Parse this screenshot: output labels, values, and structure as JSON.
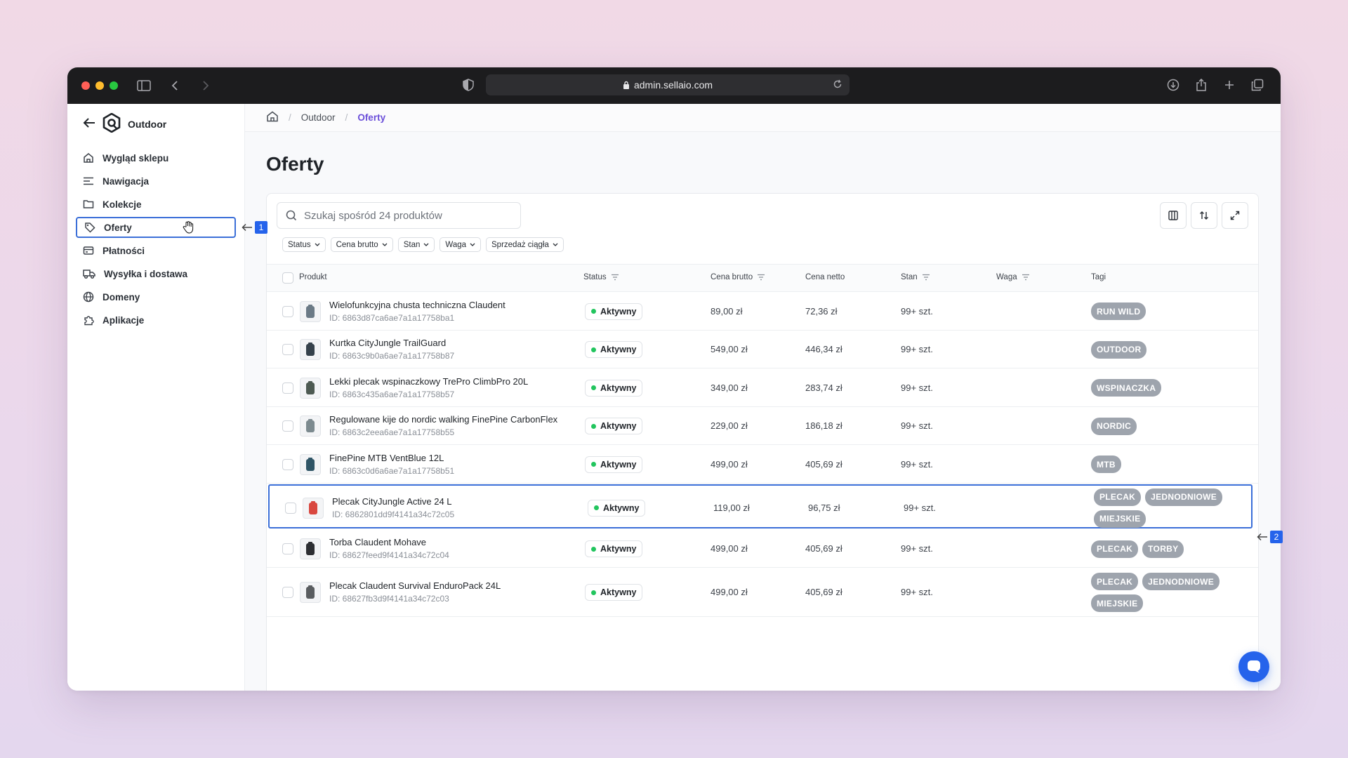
{
  "browser": {
    "url": "admin.sellaio.com"
  },
  "sidebar": {
    "store_name": "Outdoor",
    "items": [
      {
        "label": "Wygląd sklepu",
        "icon": "home-icon"
      },
      {
        "label": "Nawigacja",
        "icon": "menu-icon"
      },
      {
        "label": "Kolekcje",
        "icon": "folder-icon"
      },
      {
        "label": "Oferty",
        "icon": "tag-icon",
        "active": true
      },
      {
        "label": "Płatności",
        "icon": "credit-card-icon"
      },
      {
        "label": "Wysyłka i dostawa",
        "icon": "truck-icon"
      },
      {
        "label": "Domeny",
        "icon": "globe-icon"
      },
      {
        "label": "Aplikacje",
        "icon": "puzzle-icon"
      }
    ]
  },
  "breadcrumb": {
    "items": [
      "Outdoor",
      "Oferty"
    ]
  },
  "page": {
    "title": "Oferty"
  },
  "search": {
    "placeholder": "Szukaj spośród 24 produktów"
  },
  "filters": [
    "Status",
    "Cena brutto",
    "Stan",
    "Waga",
    "Sprzedaż ciągła"
  ],
  "table": {
    "columns": [
      "Produkt",
      "Status",
      "Cena brutto",
      "Cena netto",
      "Stan",
      "Waga",
      "Tagi"
    ],
    "rows": [
      {
        "name": "Wielofunkcyjna chusta techniczna Claudent",
        "id": "ID: 6863d87ca6ae7a1a17758ba1",
        "status": "Aktywny",
        "gross": "89,00 zł",
        "net": "72,36 zł",
        "stock": "99+ szt.",
        "weight": "",
        "tags": [
          "RUN WILD"
        ]
      },
      {
        "name": "Kurtka CityJungle TrailGuard",
        "id": "ID: 6863c9b0a6ae7a1a17758b87",
        "status": "Aktywny",
        "gross": "549,00 zł",
        "net": "446,34 zł",
        "stock": "99+ szt.",
        "weight": "",
        "tags": [
          "OUTDOOR"
        ]
      },
      {
        "name": "Lekki plecak wspinaczkowy TrePro ClimbPro 20L",
        "id": "ID: 6863c435a6ae7a1a17758b57",
        "status": "Aktywny",
        "gross": "349,00 zł",
        "net": "283,74 zł",
        "stock": "99+ szt.",
        "weight": "",
        "tags": [
          "WSPINACZKA"
        ]
      },
      {
        "name": "Regulowane kije do nordic walking FinePine CarbonFlex",
        "id": "ID: 6863c2eea6ae7a1a17758b55",
        "status": "Aktywny",
        "gross": "229,00 zł",
        "net": "186,18 zł",
        "stock": "99+ szt.",
        "weight": "",
        "tags": [
          "NORDIC"
        ]
      },
      {
        "name": "FinePine MTB VentBlue 12L",
        "id": "ID: 6863c0d6a6ae7a1a17758b51",
        "status": "Aktywny",
        "gross": "499,00 zł",
        "net": "405,69 zł",
        "stock": "99+ szt.",
        "weight": "",
        "tags": [
          "MTB"
        ]
      },
      {
        "name": "Plecak CityJungle Active 24 L",
        "id": "ID: 6862801dd9f4141a34c72c05",
        "status": "Aktywny",
        "gross": "119,00 zł",
        "net": "96,75 zł",
        "stock": "99+ szt.",
        "weight": "",
        "tags": [
          "PLECAK",
          "JEDNODNIOWE",
          "MIEJSKIE"
        ]
      },
      {
        "name": "Torba Claudent Mohave",
        "id": "ID: 68627feed9f4141a34c72c04",
        "status": "Aktywny",
        "gross": "499,00 zł",
        "net": "405,69 zł",
        "stock": "99+ szt.",
        "weight": "",
        "tags": [
          "PLECAK",
          "TORBY"
        ]
      },
      {
        "name": "Plecak Claudent Survival EnduroPack 24L",
        "id": "ID: 68627fb3d9f4141a34c72c03",
        "status": "Aktywny",
        "gross": "499,00 zł",
        "net": "405,69 zł",
        "stock": "99+ szt.",
        "weight": "",
        "tags": [
          "PLECAK",
          "JEDNODNIOWE",
          "MIEJSKIE"
        ]
      }
    ]
  },
  "annotations": [
    "1",
    "2"
  ],
  "colors": {
    "accent": "#3b6fd8",
    "breadcrumb_active": "#6a4ed9",
    "status_dot": "#22c55e",
    "tag_bg": "#9ea4ad"
  }
}
